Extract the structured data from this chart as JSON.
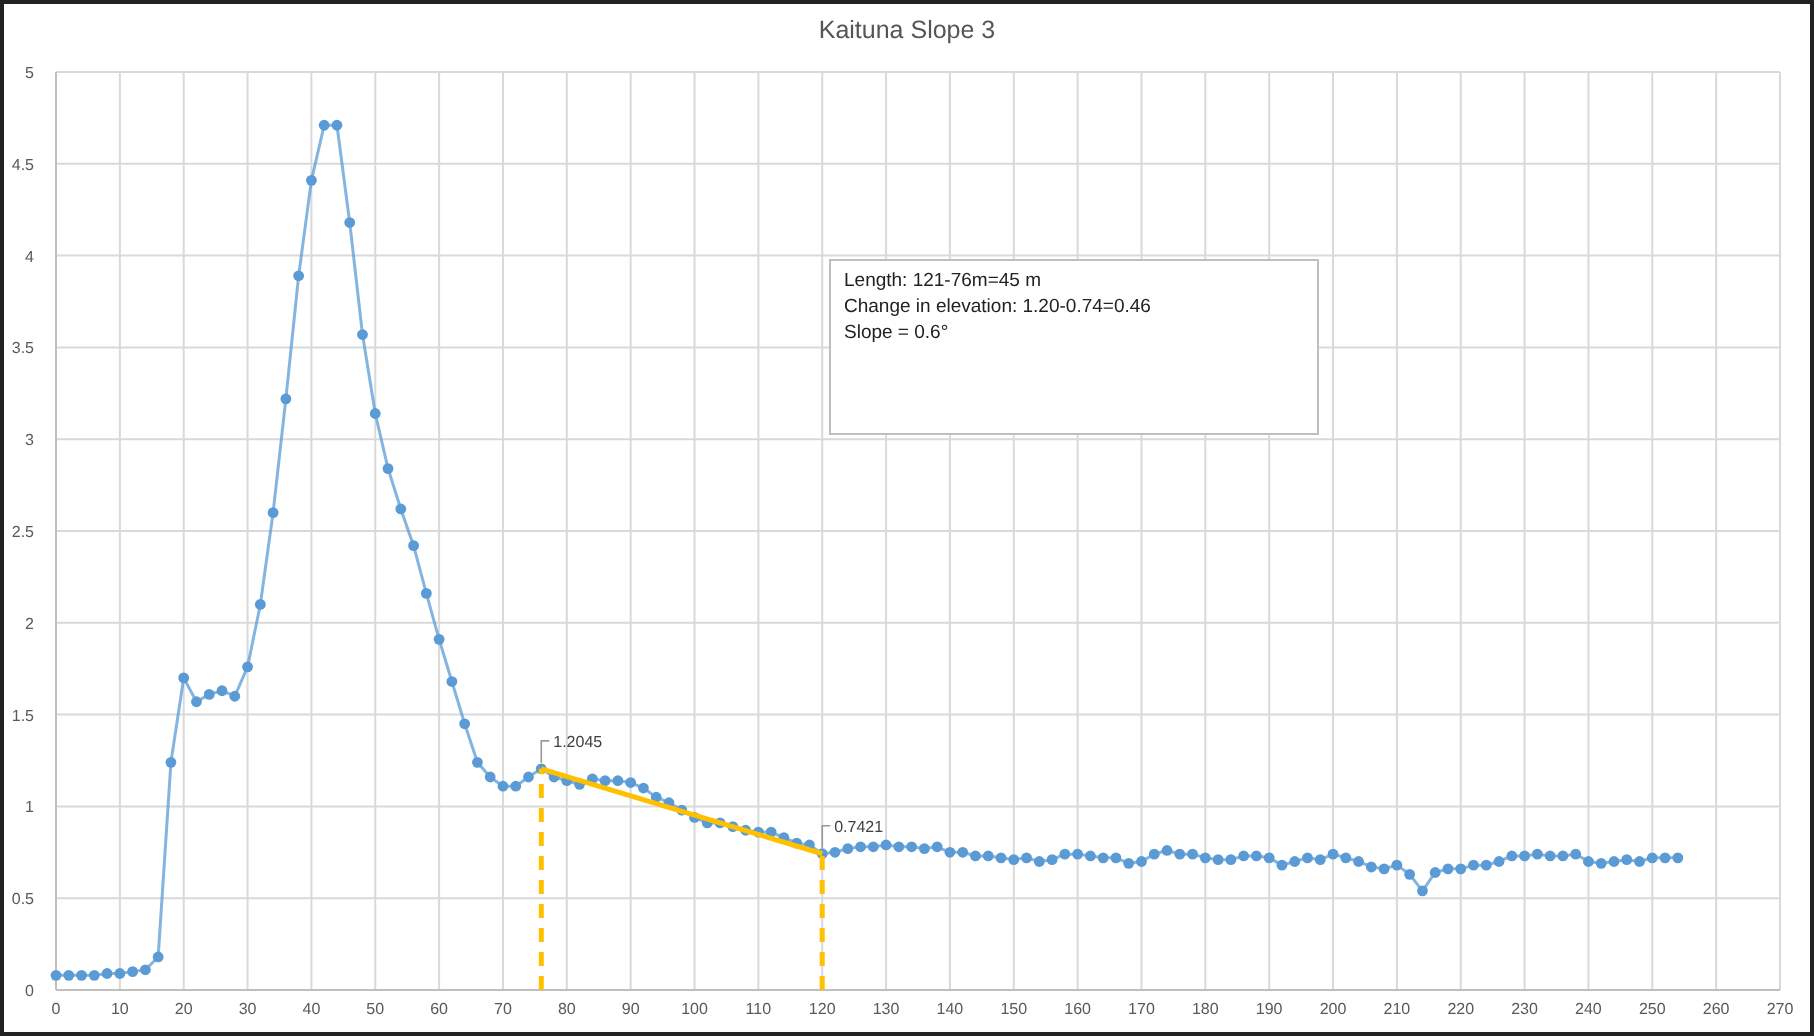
{
  "chart_data": {
    "type": "line",
    "title": "Kaituna Slope 3",
    "xlim": [
      0,
      270
    ],
    "xticks": [
      0,
      10,
      20,
      30,
      40,
      50,
      60,
      70,
      80,
      90,
      100,
      110,
      120,
      130,
      140,
      150,
      160,
      170,
      180,
      190,
      200,
      210,
      220,
      230,
      240,
      250,
      260,
      270
    ],
    "ylim": [
      0,
      5
    ],
    "yticks": [
      0,
      0.5,
      1,
      1.5,
      2,
      2.5,
      3,
      3.5,
      4,
      4.5,
      5
    ],
    "grid": true,
    "series": [
      {
        "color": "#5b9bd5",
        "marker": "circle",
        "line_style": "solid",
        "x": [
          0,
          2,
          4,
          6,
          8,
          10,
          12,
          14,
          16,
          18,
          20,
          22,
          24,
          26,
          28,
          30,
          32,
          34,
          36,
          38,
          40,
          42,
          44,
          46,
          48,
          50,
          52,
          54,
          56,
          58,
          60,
          62,
          64,
          66,
          68,
          70,
          72,
          74,
          76,
          78,
          80,
          82,
          84,
          86,
          88,
          90,
          92,
          94,
          96,
          98,
          100,
          102,
          104,
          106,
          108,
          110,
          112,
          114,
          116,
          118,
          120,
          122,
          124,
          126,
          128,
          130,
          132,
          134,
          136,
          138,
          140,
          142,
          144,
          146,
          148,
          150,
          152,
          154,
          156,
          158,
          160,
          162,
          164,
          166,
          168,
          170,
          172,
          174,
          176,
          178,
          180,
          182,
          184,
          186,
          188,
          190,
          192,
          194,
          196,
          198,
          200,
          202,
          204,
          206,
          208,
          210,
          212,
          214,
          216,
          218,
          220,
          222,
          224,
          226,
          228,
          230,
          232,
          234,
          236,
          238,
          240,
          242,
          244,
          246,
          248,
          250,
          252,
          254
        ],
        "values": [
          0.08,
          0.08,
          0.08,
          0.08,
          0.09,
          0.09,
          0.1,
          0.11,
          0.18,
          1.24,
          1.7,
          1.57,
          1.61,
          1.63,
          1.6,
          1.76,
          2.1,
          2.6,
          3.22,
          3.89,
          4.41,
          4.71,
          4.71,
          4.18,
          3.57,
          3.14,
          2.84,
          2.62,
          2.42,
          2.16,
          1.91,
          1.68,
          1.45,
          1.24,
          1.16,
          1.11,
          1.11,
          1.16,
          1.2045,
          1.16,
          1.14,
          1.12,
          1.15,
          1.14,
          1.14,
          1.13,
          1.1,
          1.05,
          1.02,
          0.98,
          0.94,
          0.91,
          0.91,
          0.89,
          0.87,
          0.86,
          0.86,
          0.83,
          0.8,
          0.79,
          0.7421,
          0.75,
          0.77,
          0.78,
          0.78,
          0.79,
          0.78,
          0.78,
          0.77,
          0.78,
          0.75,
          0.75,
          0.73,
          0.73,
          0.72,
          0.71,
          0.72,
          0.7,
          0.71,
          0.74,
          0.74,
          0.73,
          0.72,
          0.72,
          0.69,
          0.7,
          0.74,
          0.76,
          0.74,
          0.74,
          0.72,
          0.71,
          0.71,
          0.73,
          0.73,
          0.72,
          0.68,
          0.7,
          0.72,
          0.71,
          0.74,
          0.72,
          0.7,
          0.67,
          0.66,
          0.68,
          0.63,
          0.54,
          0.64,
          0.66,
          0.66,
          0.68,
          0.68,
          0.7,
          0.73,
          0.73,
          0.74,
          0.73,
          0.73,
          0.74,
          0.7,
          0.69,
          0.7,
          0.71,
          0.7,
          0.72,
          0.72,
          0.72
        ]
      },
      {
        "color": "#ffc000",
        "marker": "none",
        "line_style": "solid",
        "x": [
          76,
          120
        ],
        "values": [
          1.2045,
          0.7421
        ]
      },
      {
        "color": "#ffc000",
        "marker": "none",
        "line_style": "dashed",
        "x": [
          76,
          76
        ],
        "values": [
          0,
          1.2045
        ]
      },
      {
        "color": "#ffc000",
        "marker": "none",
        "line_style": "dashed",
        "x": [
          120,
          120
        ],
        "values": [
          0,
          0.7421
        ]
      }
    ],
    "annotations": [
      {
        "text": "1.2045",
        "x": 76,
        "y": 1.2045
      },
      {
        "text": "0.7421",
        "x": 120,
        "y": 0.7421
      },
      "Length: 121-76m=45 m",
      "Change in elevation: 1.20-0.74=0.46",
      "Slope = 0.6°"
    ]
  }
}
